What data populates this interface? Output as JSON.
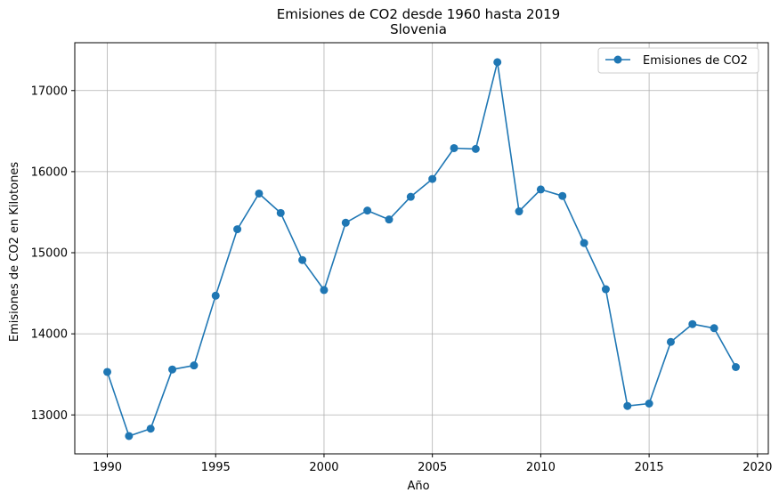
{
  "chart_data": {
    "type": "line",
    "title": "Emisiones de CO2 desde 1960 hasta 2019",
    "subtitle": "Slovenia",
    "xlabel": "Año",
    "ylabel": "Emisiones de CO2 en Kilotones",
    "xlim": [
      1988.5,
      2020.5
    ],
    "ylim": [
      12520,
      17590
    ],
    "xticks": [
      1990,
      1995,
      2000,
      2005,
      2010,
      2015,
      2020
    ],
    "yticks": [
      13000,
      14000,
      15000,
      16000,
      17000
    ],
    "grid": true,
    "legend_position": "top-right",
    "series": [
      {
        "name": "Emisiones de CO2",
        "color": "#1f77b4",
        "marker": "circle",
        "x": [
          1990,
          1991,
          1992,
          1993,
          1994,
          1995,
          1996,
          1997,
          1998,
          1999,
          2000,
          2001,
          2002,
          2003,
          2004,
          2005,
          2006,
          2007,
          2008,
          2009,
          2010,
          2011,
          2012,
          2013,
          2014,
          2015,
          2016,
          2017,
          2018,
          2019
        ],
        "y": [
          13530,
          12740,
          12830,
          13560,
          13610,
          14470,
          15290,
          15730,
          15490,
          14910,
          14540,
          15370,
          15520,
          15410,
          15690,
          15910,
          16290,
          16280,
          17350,
          15510,
          15780,
          15700,
          15120,
          14550,
          13110,
          13140,
          13900,
          14120,
          14070,
          13590
        ]
      }
    ]
  }
}
